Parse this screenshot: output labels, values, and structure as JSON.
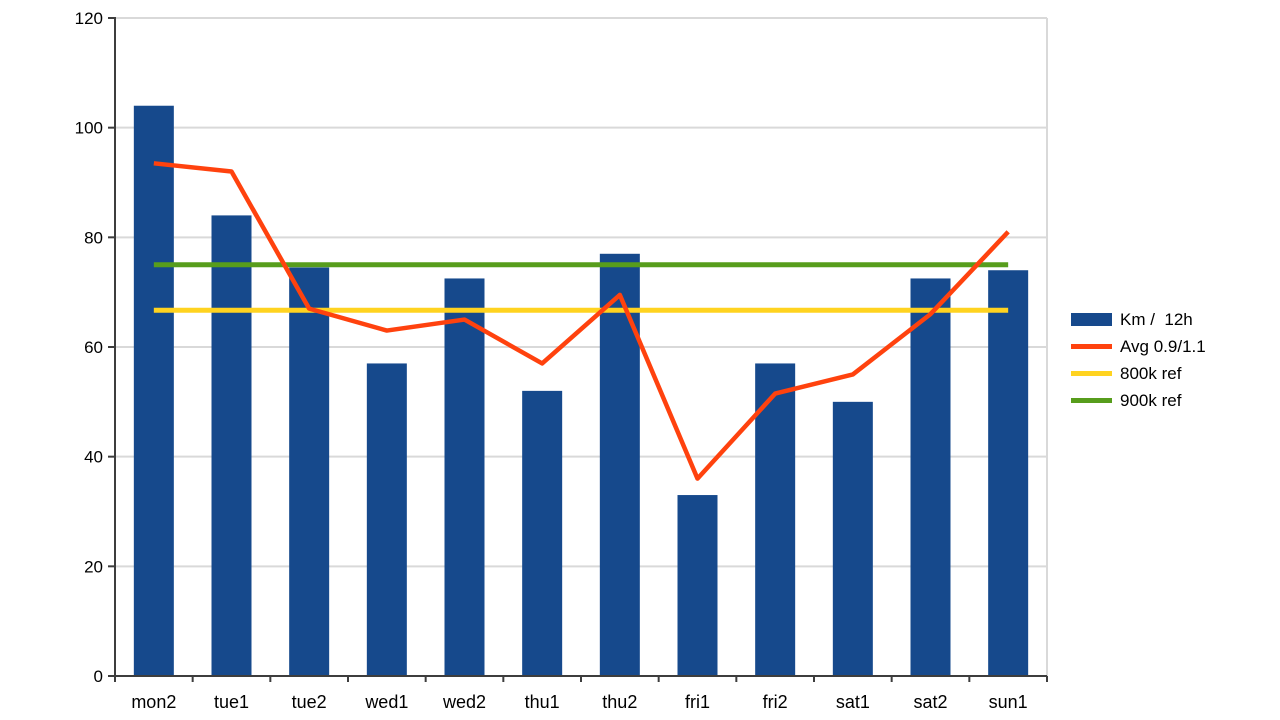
{
  "chart_data": {
    "type": "bar+line",
    "title": "",
    "categories": [
      "mon2",
      "tue1",
      "tue2",
      "wed1",
      "wed2",
      "thu1",
      "thu2",
      "fri1",
      "fri2",
      "sat1",
      "sat2",
      "sun1"
    ],
    "series": [
      {
        "name": "Km /  12h",
        "kind": "bar",
        "color": "#16498c",
        "values": [
          104,
          84,
          74.5,
          57,
          72.5,
          52,
          77,
          33,
          57,
          50,
          72.5,
          74
        ]
      },
      {
        "name": "Avg 0.9/1.1",
        "kind": "line",
        "color": "#ff420e",
        "values": [
          93.5,
          92,
          67,
          63,
          65,
          57,
          69.5,
          36,
          51.5,
          55,
          66,
          81
        ]
      },
      {
        "name": "800k ref",
        "kind": "refline",
        "color": "#ffd320",
        "constant": 66.7
      },
      {
        "name": "900k ref",
        "kind": "refline",
        "color": "#579d1c",
        "constant": 75
      }
    ],
    "ylim": [
      0,
      120
    ],
    "yticks": [
      0,
      20,
      40,
      60,
      80,
      100,
      120
    ],
    "grid": true,
    "legend_position": "right",
    "colors": {
      "gridline": "#d9d9d9",
      "axis": "#3d3d3d",
      "label": "#000000",
      "background": "#ffffff"
    }
  }
}
